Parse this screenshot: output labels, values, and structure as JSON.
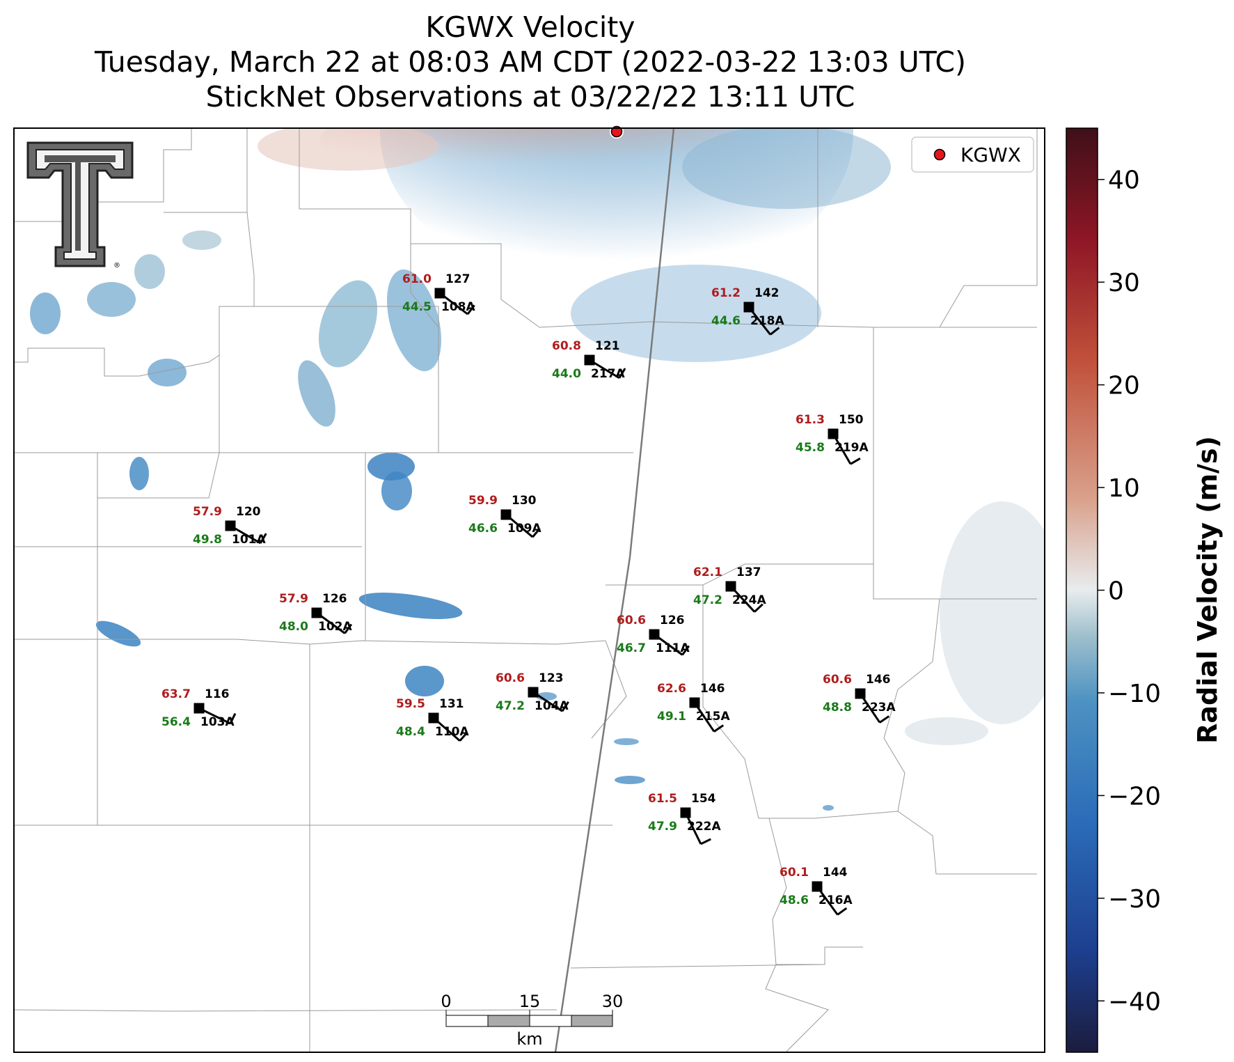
{
  "title": {
    "line1": "KGWX Velocity",
    "line2": "Tuesday, March 22 at 08:03 AM CDT (2022-03-22 13:03 UTC)",
    "line3": "StickNet Observations at 03/22/22 13:11 UTC"
  },
  "legend": {
    "label": "KGWX",
    "marker_color": "#e8141c"
  },
  "colorbar": {
    "label": "Radial Velocity (m/s)",
    "range": [
      -45,
      45
    ],
    "ticks": [
      40,
      30,
      20,
      10,
      0,
      -10,
      -20,
      -30,
      -40
    ],
    "tick_labels": [
      "40",
      "30",
      "20",
      "10",
      "0",
      "−10",
      "−20",
      "−30",
      "−40"
    ],
    "colors": [
      "#1b1c3d",
      "#1d3f8f",
      "#2b6cb8",
      "#4d92c2",
      "#9ebfcc",
      "#e8ecee",
      "#d9a08a",
      "#c0503a",
      "#8e1626",
      "#3f1018"
    ]
  },
  "scale_bar": {
    "ticks": [
      "0",
      "15",
      "30"
    ],
    "unit": "km"
  },
  "logo": {
    "name": "Texas Tech Double T",
    "text": "TT",
    "registered_mark": "®"
  },
  "colors": {
    "temperature": "#b01c1c",
    "dewpoint": "#197a19",
    "station": "#000000"
  },
  "stations": [
    {
      "id": "108A",
      "temp": "61.0",
      "dew": "44.5",
      "dir": "127"
    },
    {
      "id": "218A",
      "temp": "61.2",
      "dew": "44.6",
      "dir": "142"
    },
    {
      "id": "217A",
      "temp": "60.8",
      "dew": "44.0",
      "dir": "121"
    },
    {
      "id": "219A",
      "temp": "61.3",
      "dew": "45.8",
      "dir": "150"
    },
    {
      "id": "101A",
      "temp": "57.9",
      "dew": "49.8",
      "dir": "120"
    },
    {
      "id": "109A",
      "temp": "59.9",
      "dew": "46.6",
      "dir": "130"
    },
    {
      "id": "224A",
      "temp": "62.1",
      "dew": "47.2",
      "dir": "137"
    },
    {
      "id": "102A",
      "temp": "57.9",
      "dew": "48.0",
      "dir": "126"
    },
    {
      "id": "111A",
      "temp": "60.6",
      "dew": "46.7",
      "dir": "126"
    },
    {
      "id": "103A",
      "temp": "63.7",
      "dew": "56.4",
      "dir": "116"
    },
    {
      "id": "104A",
      "temp": "60.6",
      "dew": "47.2",
      "dir": "123"
    },
    {
      "id": "110A",
      "temp": "59.5",
      "dew": "48.4",
      "dir": "131"
    },
    {
      "id": "215A",
      "temp": "62.6",
      "dew": "49.1",
      "dir": "146"
    },
    {
      "id": "223A",
      "temp": "60.6",
      "dew": "48.8",
      "dir": "146"
    },
    {
      "id": "222A",
      "temp": "61.5",
      "dew": "47.9",
      "dir": "154"
    },
    {
      "id": "216A",
      "temp": "60.1",
      "dew": "48.6",
      "dir": "144"
    }
  ]
}
